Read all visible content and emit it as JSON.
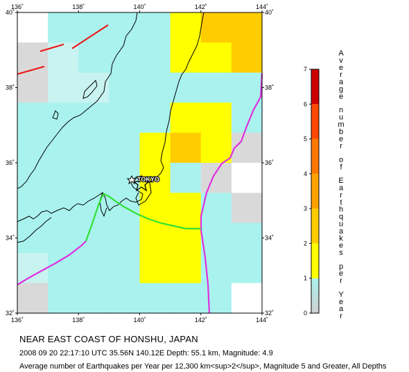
{
  "map": {
    "lon_labels": [
      "136˚",
      "138˚",
      "140˚",
      "142˚",
      "144˚"
    ],
    "lat_labels": [
      "32˚",
      "34˚",
      "36˚",
      "38˚",
      "40˚"
    ],
    "city_label": "TOKYO",
    "colors": {
      "bin_0_1": "#a9f2ee",
      "bin_1_2": "#ffff00",
      "bin_2_3": "#ffcc00",
      "bin_3_4": "#ffa200",
      "bin_4_5": "#ff7800",
      "bin_5_6": "#ff4800",
      "bin_6_7": "#cc0000",
      "trench": "#e030e0",
      "plate_boundary": "#33e033",
      "fault": "#ee1111"
    }
  },
  "legend": {
    "title": "Average number of Earthquakes per Year",
    "ticks": [
      "0",
      "1",
      "2",
      "3",
      "4",
      "5",
      "6",
      "7"
    ]
  },
  "caption": {
    "title": "NEAR EAST COAST OF HONSHU, JAPAN",
    "event": "2008 09 20 22:17:10 UTC 35.56N 140.12E Depth: 55.1 km, Magnitude: 4.9",
    "description": "Average number of Earthquakes per Year per 12,300 km<sup>2</sup>, Magnitude 5 and Greater, All Depths"
  }
}
